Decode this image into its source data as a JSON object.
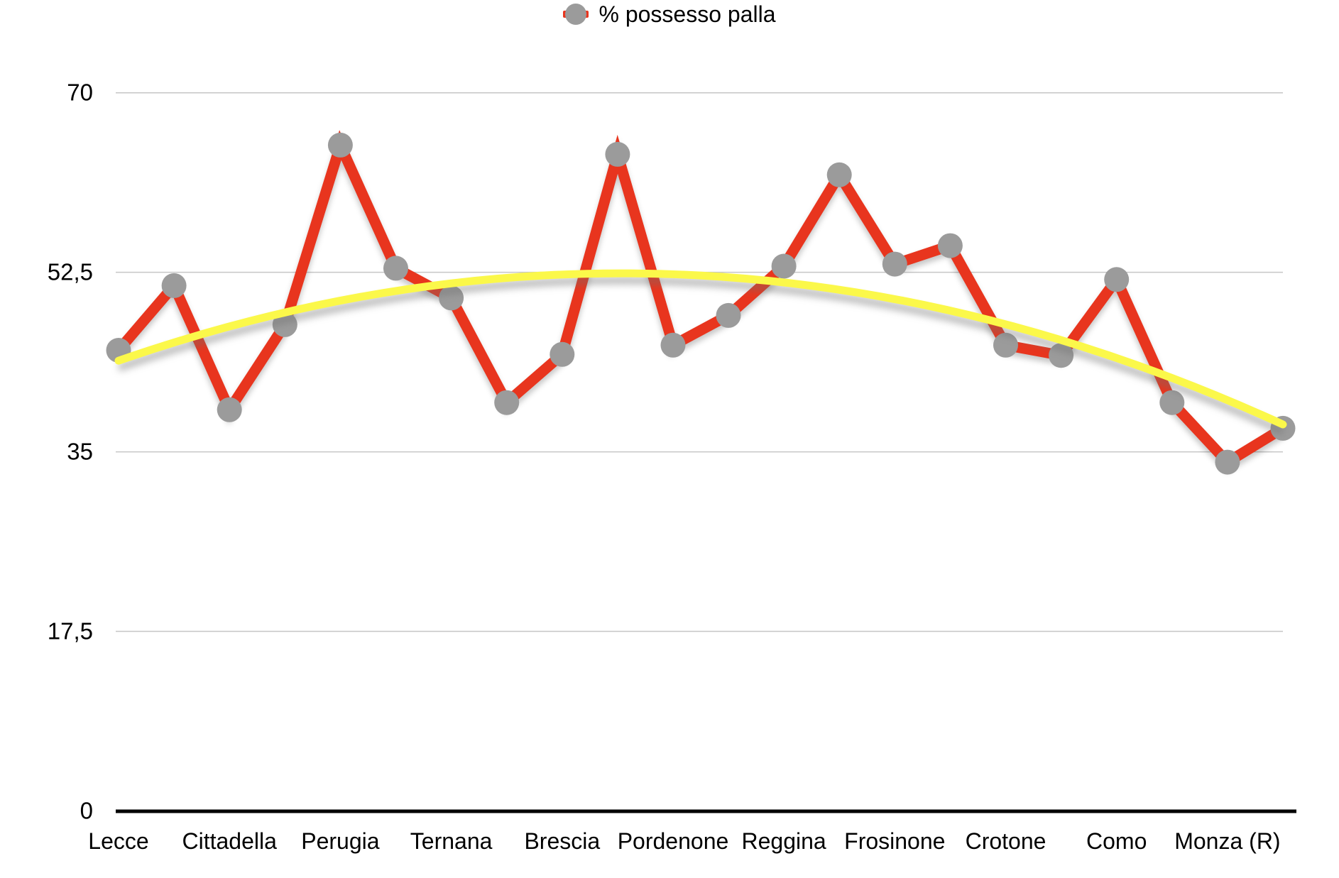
{
  "legend": {
    "label": "% possesso palla"
  },
  "colors": {
    "line": "#e8351e",
    "marker": "#9b9b9b",
    "trend": "#fbf84a",
    "grid": "#c6c6c6",
    "axis": "#000000",
    "text": "#000000",
    "background": "#ffffff",
    "shadow": "rgba(0,0,0,0.30)"
  },
  "chart_data": {
    "type": "line",
    "title": "% possesso palla",
    "series": [
      {
        "name": "% possesso palla",
        "values": [
          44.9,
          51.2,
          39.1,
          47.4,
          64.9,
          52.9,
          50.0,
          39.8,
          44.5,
          64.0,
          45.4,
          48.3,
          53.1,
          62.0,
          53.3,
          55.1,
          45.4,
          44.4,
          51.8,
          39.8,
          34.0,
          37.3
        ]
      }
    ],
    "n_points": 22,
    "x_tick_labels": [
      "Lecce",
      "Cittadella",
      "Perugia",
      "Ternana",
      "Brescia",
      "Pordenone",
      "Reggina",
      "Frosinone",
      "Crotone",
      "Como",
      "Monza (R)"
    ],
    "x_labeled_point_indices": [
      0,
      2,
      4,
      6,
      8,
      10,
      12,
      14,
      16,
      18,
      20
    ],
    "ylabel": "",
    "xlabel": "",
    "ylim": [
      0,
      70
    ],
    "yticks": [
      {
        "value": 0,
        "label": "0"
      },
      {
        "value": 17.5,
        "label": "17,5"
      },
      {
        "value": 35,
        "label": "35"
      },
      {
        "value": 52.5,
        "label": "52,5"
      },
      {
        "value": 70,
        "label": "70"
      }
    ],
    "grid": "horizontal",
    "legend_position": "top-center",
    "trendline": {
      "type": "quadratic",
      "vertex_index": 9.07,
      "vertex_value": 52.4,
      "curvature_per_index2": 0.1035
    }
  }
}
